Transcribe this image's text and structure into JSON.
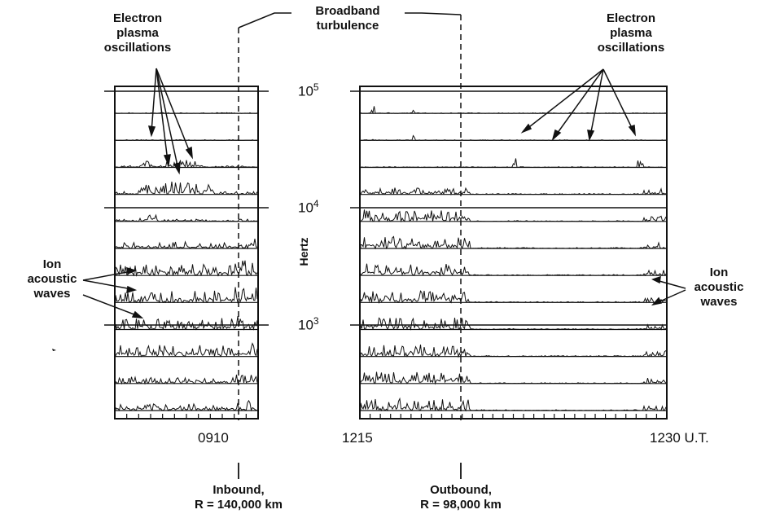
{
  "labels": {
    "epo_left": [
      "Electron",
      "plasma",
      "oscillations"
    ],
    "broadband": [
      "Broadband",
      "turbulence"
    ],
    "epo_right": [
      "Electron",
      "plasma",
      "oscillations"
    ],
    "ion_left": [
      "Ion",
      "acoustic",
      "waves"
    ],
    "ion_right": [
      "Ion",
      "acoustic",
      "waves"
    ]
  },
  "freq_axis": {
    "unit": "Hertz",
    "ticks": [
      {
        "base": "10",
        "exp": "5"
      },
      {
        "base": "10",
        "exp": "4"
      },
      {
        "base": "10",
        "exp": "3"
      }
    ]
  },
  "time_axis": {
    "left_tick": "0910",
    "right_start": "1215",
    "right_end": "1230 U.T."
  },
  "crossings": {
    "inbound": [
      "Inbound,",
      "R = 140,000 km"
    ],
    "outbound": [
      "Outbound,",
      "R = 98,000 km"
    ]
  },
  "panels": {
    "left_channels": 12,
    "right_channels": 12
  },
  "colors": {
    "ink": "#111111",
    "background": "#ffffff"
  }
}
